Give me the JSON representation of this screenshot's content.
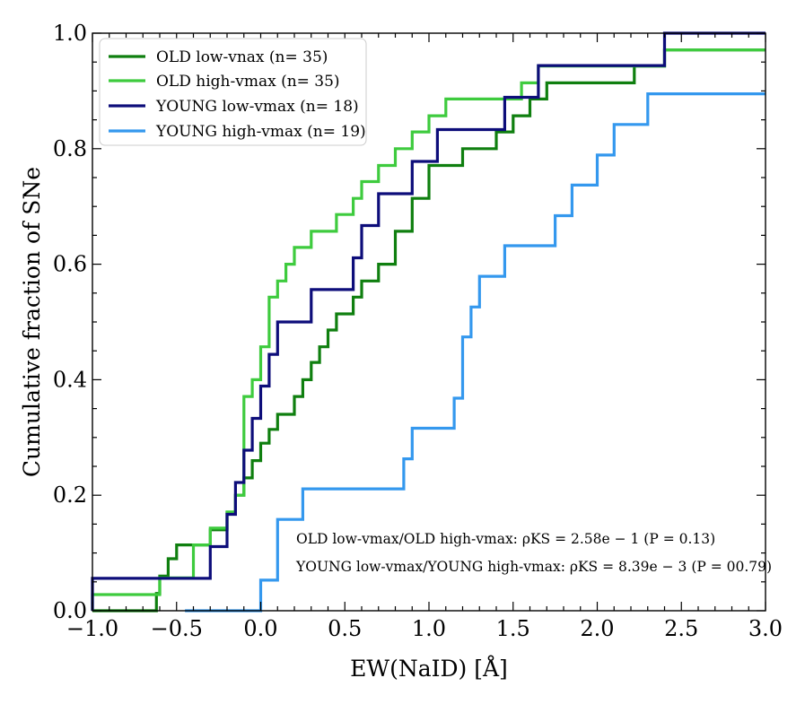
{
  "chart_data": {
    "type": "line",
    "xlabel": "EW(NaID) [Å]",
    "ylabel": "Cumulative fraction of SNe",
    "xlim": [
      -1.0,
      3.0
    ],
    "ylim": [
      0.0,
      1.0
    ],
    "x_ticks": [
      "−1.0",
      "−0.5",
      "0.0",
      "0.5",
      "1.0",
      "1.5",
      "2.0",
      "2.5",
      "3.0"
    ],
    "y_ticks": [
      "0.0",
      "0.2",
      "0.4",
      "0.6",
      "0.8",
      "1.0"
    ],
    "legend_position": "top-left",
    "series": [
      {
        "name": "OLD low-vnax (n= 35)",
        "color": "#0f7f0f",
        "x": [
          -1.0,
          -0.62,
          -0.6,
          -0.55,
          -0.5,
          -0.3,
          -0.2,
          -0.15,
          -0.1,
          -0.05,
          0.0,
          0.05,
          0.1,
          0.2,
          0.25,
          0.3,
          0.35,
          0.4,
          0.45,
          0.55,
          0.6,
          0.7,
          0.8,
          0.9,
          1.0,
          1.2,
          1.4,
          1.5,
          1.6,
          1.7,
          2.0,
          2.22,
          2.4,
          3.0
        ],
        "y": [
          0.0,
          0.03,
          0.06,
          0.09,
          0.114,
          0.14,
          0.17,
          0.2,
          0.23,
          0.26,
          0.29,
          0.314,
          0.34,
          0.371,
          0.4,
          0.43,
          0.457,
          0.486,
          0.514,
          0.543,
          0.571,
          0.6,
          0.657,
          0.714,
          0.771,
          0.8,
          0.829,
          0.857,
          0.886,
          0.914,
          0.914,
          0.943,
          0.971,
          0.971
        ]
      },
      {
        "name": "OLD high-vmax (n= 35)",
        "color": "#3ecb3e",
        "x": [
          -1.0,
          -0.6,
          -0.4,
          -0.3,
          -0.2,
          -0.15,
          -0.1,
          -0.05,
          0.0,
          0.05,
          0.1,
          0.15,
          0.2,
          0.3,
          0.45,
          0.55,
          0.6,
          0.7,
          0.8,
          0.9,
          1.0,
          1.1,
          1.2,
          1.3,
          1.4,
          1.55,
          1.65,
          2.0,
          2.4,
          3.0
        ],
        "y": [
          0.028,
          0.057,
          0.114,
          0.143,
          0.171,
          0.2,
          0.371,
          0.4,
          0.457,
          0.543,
          0.571,
          0.6,
          0.629,
          0.657,
          0.686,
          0.714,
          0.743,
          0.771,
          0.8,
          0.829,
          0.857,
          0.886,
          0.886,
          0.886,
          0.886,
          0.914,
          0.943,
          0.943,
          0.971,
          0.971
        ]
      },
      {
        "name": "YOUNG low-vmax (n= 18)",
        "color": "#0d0d7a",
        "x": [
          -1.0,
          -0.3,
          -0.2,
          -0.15,
          -0.1,
          -0.05,
          0.0,
          0.05,
          0.1,
          0.3,
          0.55,
          0.6,
          0.7,
          0.9,
          1.0,
          1.05,
          1.45,
          1.6,
          1.65,
          2.0,
          2.4,
          3.0
        ],
        "y": [
          0.056,
          0.111,
          0.167,
          0.222,
          0.278,
          0.333,
          0.389,
          0.444,
          0.5,
          0.556,
          0.611,
          0.667,
          0.722,
          0.778,
          0.778,
          0.833,
          0.889,
          0.889,
          0.944,
          0.944,
          1.0,
          1.0
        ]
      },
      {
        "name": "YOUNG high-vmax (n= 19)",
        "color": "#3498ee",
        "x": [
          -0.45,
          0.0,
          0.1,
          0.25,
          0.85,
          0.9,
          1.15,
          1.2,
          1.25,
          1.3,
          1.45,
          1.75,
          1.85,
          2.0,
          2.1,
          2.3,
          2.5,
          3.0
        ],
        "y": [
          0.0,
          0.053,
          0.158,
          0.211,
          0.263,
          0.316,
          0.368,
          0.474,
          0.526,
          0.579,
          0.632,
          0.684,
          0.737,
          0.789,
          0.842,
          0.895,
          0.895,
          0.895
        ]
      }
    ],
    "annotations": [
      "OLD low-vmax/OLD high-vmax:  ρKS = 2.58e − 1  (P = 0.13)",
      "YOUNG low-vmax/YOUNG high-vmax:  ρKS = 8.39e − 3 (P = 00.79)"
    ]
  }
}
